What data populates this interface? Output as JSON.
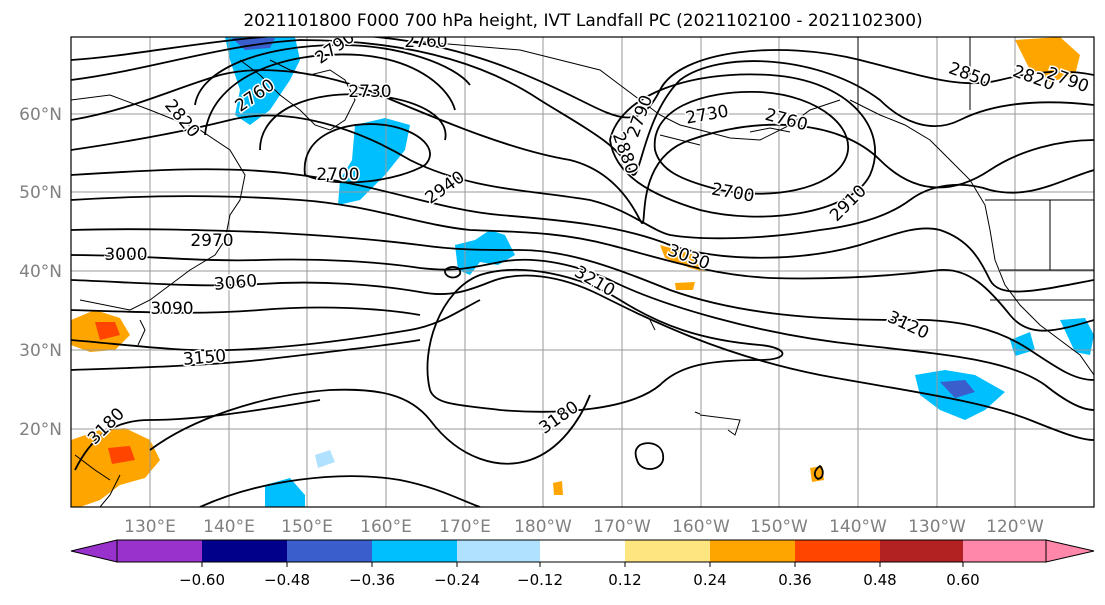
{
  "map": {
    "title": "2021101800 F000 700 hPa height, IVT Landfall PC (2021102100 - 2021102300)",
    "lon_ticks": [
      "130°E",
      "140°E",
      "150°E",
      "160°E",
      "170°E",
      "180°W",
      "170°W",
      "160°W",
      "150°W",
      "140°W",
      "130°W",
      "120°W"
    ],
    "lat_ticks": [
      "60°N",
      "50°N",
      "40°N",
      "30°N",
      "20°N"
    ],
    "contour_labels": [
      "2760",
      "2790",
      "2760",
      "2730",
      "2820",
      "2700",
      "2940",
      "2970",
      "3000",
      "3060",
      "3090",
      "3150",
      "3180",
      "2790",
      "2880",
      "2730",
      "2760",
      "2700",
      "2910",
      "3030",
      "3210",
      "3120",
      "3180",
      "2850",
      "2820",
      "2790"
    ]
  },
  "colorbar": {
    "ticks": [
      "−0.60",
      "−0.48",
      "−0.36",
      "−0.24",
      "−0.12",
      "0.12",
      "0.24",
      "0.36",
      "0.48",
      "0.60"
    ],
    "colors": [
      "#9932cc",
      "#00008b",
      "#3a5fcd",
      "#00bfff",
      "#b0e2ff",
      "#ffffff",
      "#ffe57f",
      "#ffa500",
      "#ff4500",
      "#b22222",
      "#ff88aa"
    ]
  }
}
